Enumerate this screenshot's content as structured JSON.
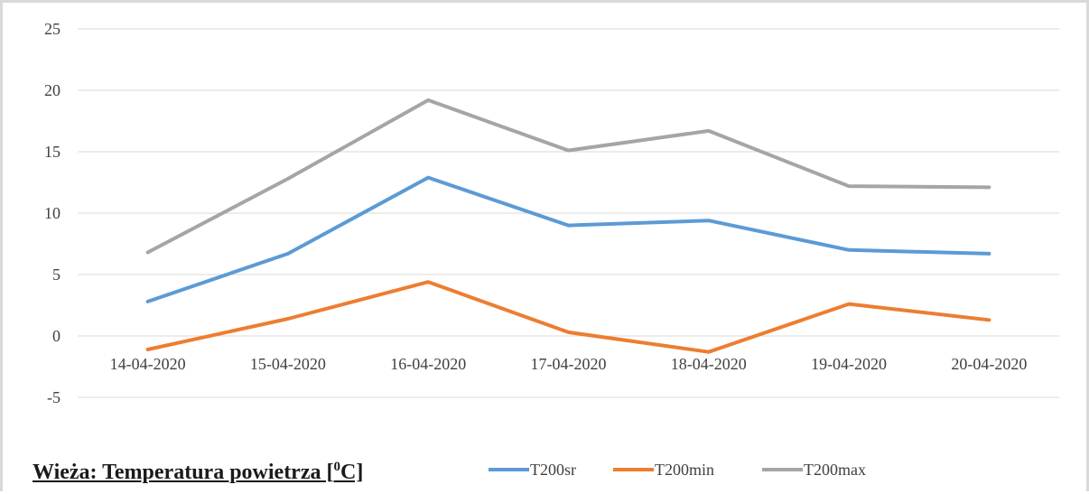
{
  "chart_data": {
    "type": "line",
    "title_main": "Wieża: Temperatura powietrza [",
    "title_sup": "0",
    "title_end": "C]",
    "categories": [
      "14-04-2020",
      "15-04-2020",
      "16-04-2020",
      "17-04-2020",
      "18-04-2020",
      "19-04-2020",
      "20-04-2020"
    ],
    "ylim": [
      -5,
      25
    ],
    "yticks": [
      "25",
      "20",
      "15",
      "10",
      "5",
      "0",
      "-5"
    ],
    "grid": true,
    "legend_position": "bottom",
    "series": [
      {
        "name": "T200sr",
        "color": "#5b9bd5",
        "values": [
          2.8,
          6.7,
          12.9,
          9.0,
          9.4,
          7.0,
          6.7
        ]
      },
      {
        "name": "T200min",
        "color": "#ed7d31",
        "values": [
          -1.1,
          1.4,
          4.4,
          0.3,
          -1.3,
          2.6,
          1.3
        ]
      },
      {
        "name": "T200max",
        "color": "#a5a5a5",
        "values": [
          6.8,
          12.8,
          19.2,
          15.1,
          16.7,
          12.2,
          12.1
        ]
      }
    ]
  }
}
